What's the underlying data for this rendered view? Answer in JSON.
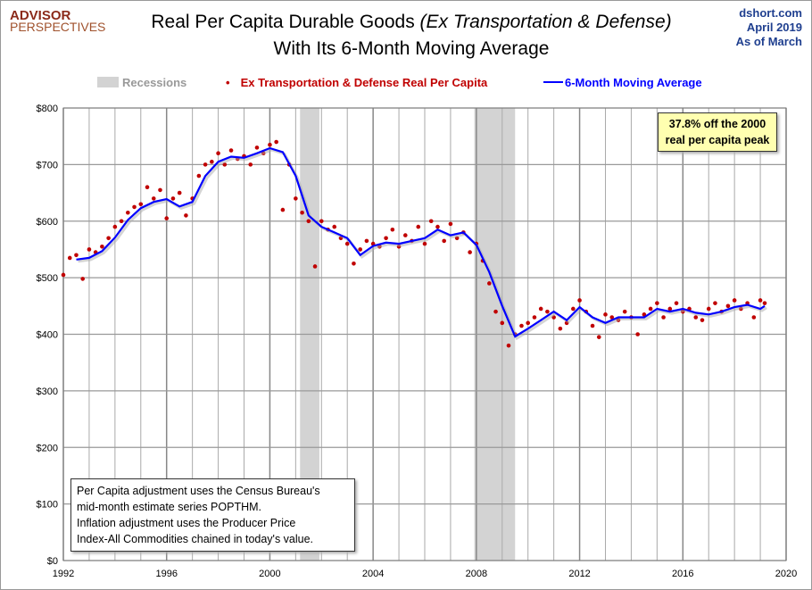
{
  "header": {
    "logo_line1": "ADVISOR",
    "logo_line2": "PERSPECTIVES",
    "title_main": "Real Per Capita Durable Goods",
    "title_italic": "(Ex Transportation & Defense)",
    "title_line2": "With Its 6-Month Moving Average",
    "source": "dshort.com",
    "date": "April 2019",
    "as_of": "As of March"
  },
  "legend": {
    "recessions": "Recessions",
    "series1": "Ex Transportation & Defense Real Per Capita",
    "series2": "6-Month Moving Average"
  },
  "annotation": {
    "line1": "37.8% off the 2000",
    "line2": "real per capita peak"
  },
  "note": {
    "line1": "Per Capita adjustment uses the Census Bureau's",
    "line2": "mid-month estimate series POPTHM.",
    "line3": "Inflation adjustment uses the Producer Price",
    "line4": "Index-All Commodities chained in today's value."
  },
  "colors": {
    "scatter": "#c00000",
    "line": "#0000ff",
    "recession": "#d3d3d3"
  },
  "chart_data": {
    "type": "line",
    "xlim": [
      1992,
      2020
    ],
    "ylim": [
      0,
      800
    ],
    "grid": true,
    "legend_placement": "top",
    "x_ticks": [
      "1992",
      "1996",
      "2000",
      "2004",
      "2008",
      "2012",
      "2016",
      "2020"
    ],
    "y_ticks": [
      "$0",
      "$100",
      "$200",
      "$300",
      "$400",
      "$500",
      "$600",
      "$700",
      "$800"
    ],
    "recessions": [
      [
        2001.17,
        2001.92
      ],
      [
        2007.92,
        2009.5
      ]
    ],
    "series": [
      {
        "name": "Ex Transportation & Defense Real Per Capita",
        "type": "scatter",
        "points": [
          [
            1992.0,
            505
          ],
          [
            1992.25,
            535
          ],
          [
            1992.5,
            540
          ],
          [
            1992.75,
            498
          ],
          [
            1993.0,
            550
          ],
          [
            1993.25,
            545
          ],
          [
            1993.5,
            555
          ],
          [
            1993.75,
            570
          ],
          [
            1994.0,
            590
          ],
          [
            1994.25,
            600
          ],
          [
            1994.5,
            615
          ],
          [
            1994.75,
            625
          ],
          [
            1995.0,
            630
          ],
          [
            1995.25,
            660
          ],
          [
            1995.5,
            640
          ],
          [
            1995.75,
            655
          ],
          [
            1996.0,
            605
          ],
          [
            1996.25,
            640
          ],
          [
            1996.5,
            650
          ],
          [
            1996.75,
            610
          ],
          [
            1997.0,
            640
          ],
          [
            1997.25,
            680
          ],
          [
            1997.5,
            700
          ],
          [
            1997.75,
            705
          ],
          [
            1998.0,
            720
          ],
          [
            1998.25,
            700
          ],
          [
            1998.5,
            725
          ],
          [
            1998.75,
            710
          ],
          [
            1999.0,
            715
          ],
          [
            1999.25,
            700
          ],
          [
            1999.5,
            730
          ],
          [
            1999.75,
            720
          ],
          [
            2000.0,
            735
          ],
          [
            2000.25,
            740
          ],
          [
            2000.5,
            620
          ],
          [
            2000.75,
            700
          ],
          [
            2001.0,
            640
          ],
          [
            2001.25,
            615
          ],
          [
            2001.5,
            600
          ],
          [
            2001.75,
            520
          ],
          [
            2002.0,
            600
          ],
          [
            2002.25,
            585
          ],
          [
            2002.5,
            590
          ],
          [
            2002.75,
            570
          ],
          [
            2003.0,
            560
          ],
          [
            2003.25,
            525
          ],
          [
            2003.5,
            550
          ],
          [
            2003.75,
            565
          ],
          [
            2004.0,
            560
          ],
          [
            2004.25,
            555
          ],
          [
            2004.5,
            570
          ],
          [
            2004.75,
            585
          ],
          [
            2005.0,
            555
          ],
          [
            2005.25,
            575
          ],
          [
            2005.5,
            565
          ],
          [
            2005.75,
            590
          ],
          [
            2006.0,
            560
          ],
          [
            2006.25,
            600
          ],
          [
            2006.5,
            590
          ],
          [
            2006.75,
            565
          ],
          [
            2007.0,
            595
          ],
          [
            2007.25,
            570
          ],
          [
            2007.5,
            580
          ],
          [
            2007.75,
            545
          ],
          [
            2008.0,
            560
          ],
          [
            2008.25,
            530
          ],
          [
            2008.5,
            490
          ],
          [
            2008.75,
            440
          ],
          [
            2009.0,
            420
          ],
          [
            2009.25,
            380
          ],
          [
            2009.5,
            400
          ],
          [
            2009.75,
            415
          ],
          [
            2010.0,
            420
          ],
          [
            2010.25,
            430
          ],
          [
            2010.5,
            445
          ],
          [
            2010.75,
            440
          ],
          [
            2011.0,
            430
          ],
          [
            2011.25,
            410
          ],
          [
            2011.5,
            420
          ],
          [
            2011.75,
            445
          ],
          [
            2012.0,
            460
          ],
          [
            2012.25,
            440
          ],
          [
            2012.5,
            415
          ],
          [
            2012.75,
            395
          ],
          [
            2013.0,
            435
          ],
          [
            2013.25,
            430
          ],
          [
            2013.5,
            425
          ],
          [
            2013.75,
            440
          ],
          [
            2014.0,
            430
          ],
          [
            2014.25,
            400
          ],
          [
            2014.5,
            435
          ],
          [
            2014.75,
            445
          ],
          [
            2015.0,
            455
          ],
          [
            2015.25,
            430
          ],
          [
            2015.5,
            445
          ],
          [
            2015.75,
            455
          ],
          [
            2016.0,
            440
          ],
          [
            2016.25,
            445
          ],
          [
            2016.5,
            430
          ],
          [
            2016.75,
            425
          ],
          [
            2017.0,
            445
          ],
          [
            2017.25,
            455
          ],
          [
            2017.5,
            440
          ],
          [
            2017.75,
            450
          ],
          [
            2018.0,
            460
          ],
          [
            2018.25,
            445
          ],
          [
            2018.5,
            455
          ],
          [
            2018.75,
            430
          ],
          [
            2019.0,
            460
          ],
          [
            2019.17,
            455
          ]
        ]
      },
      {
        "name": "6-Month Moving Average",
        "type": "line",
        "points": [
          [
            1992.5,
            532
          ],
          [
            1993.0,
            535
          ],
          [
            1993.5,
            547
          ],
          [
            1994.0,
            571
          ],
          [
            1994.5,
            602
          ],
          [
            1995.0,
            623
          ],
          [
            1995.5,
            634
          ],
          [
            1996.0,
            639
          ],
          [
            1996.5,
            626
          ],
          [
            1997.0,
            634
          ],
          [
            1997.5,
            680
          ],
          [
            1998.0,
            705
          ],
          [
            1998.5,
            714
          ],
          [
            1999.0,
            712
          ],
          [
            1999.5,
            720
          ],
          [
            2000.0,
            729
          ],
          [
            2000.5,
            722
          ],
          [
            2001.0,
            680
          ],
          [
            2001.5,
            610
          ],
          [
            2002.0,
            590
          ],
          [
            2002.5,
            580
          ],
          [
            2003.0,
            570
          ],
          [
            2003.5,
            540
          ],
          [
            2004.0,
            556
          ],
          [
            2004.5,
            562
          ],
          [
            2005.0,
            560
          ],
          [
            2005.5,
            565
          ],
          [
            2006.0,
            570
          ],
          [
            2006.5,
            585
          ],
          [
            2007.0,
            575
          ],
          [
            2007.5,
            580
          ],
          [
            2008.0,
            558
          ],
          [
            2008.5,
            510
          ],
          [
            2009.0,
            450
          ],
          [
            2009.5,
            396
          ],
          [
            2010.0,
            410
          ],
          [
            2010.5,
            425
          ],
          [
            2011.0,
            440
          ],
          [
            2011.5,
            425
          ],
          [
            2012.0,
            448
          ],
          [
            2012.5,
            430
          ],
          [
            2013.0,
            420
          ],
          [
            2013.5,
            430
          ],
          [
            2014.0,
            430
          ],
          [
            2014.5,
            430
          ],
          [
            2015.0,
            445
          ],
          [
            2015.5,
            440
          ],
          [
            2016.0,
            445
          ],
          [
            2016.5,
            438
          ],
          [
            2017.0,
            435
          ],
          [
            2017.5,
            440
          ],
          [
            2018.0,
            448
          ],
          [
            2018.5,
            452
          ],
          [
            2019.0,
            445
          ],
          [
            2019.17,
            450
          ]
        ]
      }
    ]
  }
}
